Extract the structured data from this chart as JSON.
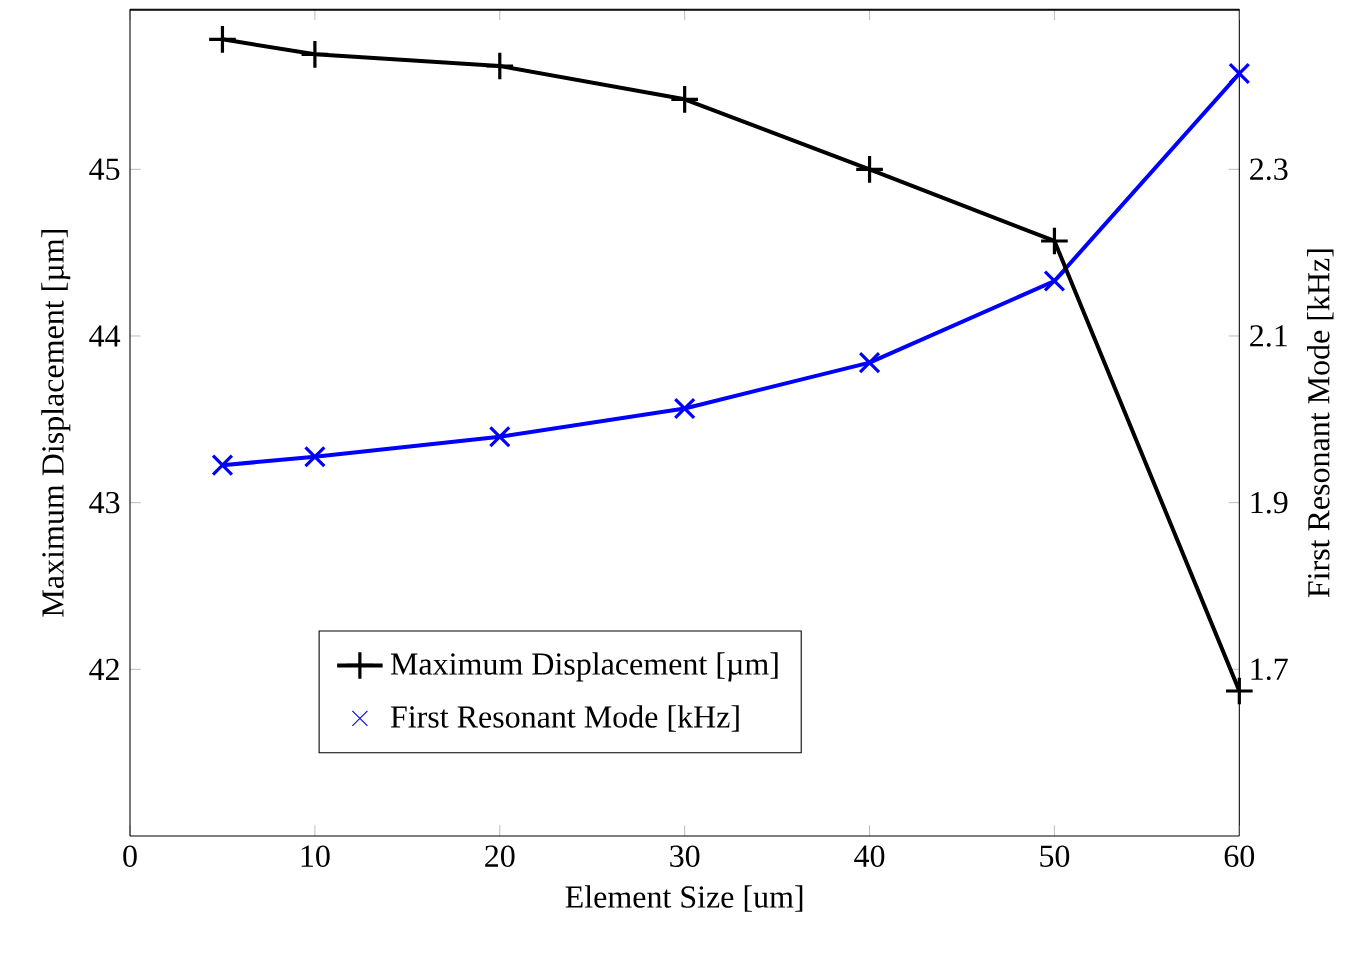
{
  "chart_data": {
    "type": "line",
    "xlabel": "Element Size [um]",
    "ylabel": "Maximum Displacement [µm]",
    "y2label": "First Resonant Mode [kHz]",
    "x": [
      5,
      10,
      20,
      30,
      40,
      50,
      60
    ],
    "series": [
      {
        "name": "Maximum Displacement [µm]",
        "color": "#000000",
        "marker": "plus",
        "values": [
          45.78,
          45.69,
          45.62,
          45.42,
          45.0,
          44.57,
          41.87
        ]
      },
      {
        "name": "First Resonant Mode [kHz]",
        "color": "#0000ff",
        "marker": "cross",
        "axis": "y2",
        "values": [
          1.945,
          1.955,
          1.979,
          2.013,
          2.068,
          2.166,
          2.415
        ]
      }
    ],
    "xlim": [
      0,
      60
    ],
    "xticks": [
      0,
      10,
      20,
      30,
      40,
      50,
      60
    ],
    "ylim": [
      41,
      45.96
    ],
    "yticks": [
      42,
      43,
      44,
      45
    ],
    "y2lim": [
      1.5,
      2.492
    ],
    "y2ticks": [
      1.7,
      1.9,
      2.1,
      2.3
    ],
    "legend": "bottom left",
    "grid": false,
    "line_style": "solid"
  }
}
